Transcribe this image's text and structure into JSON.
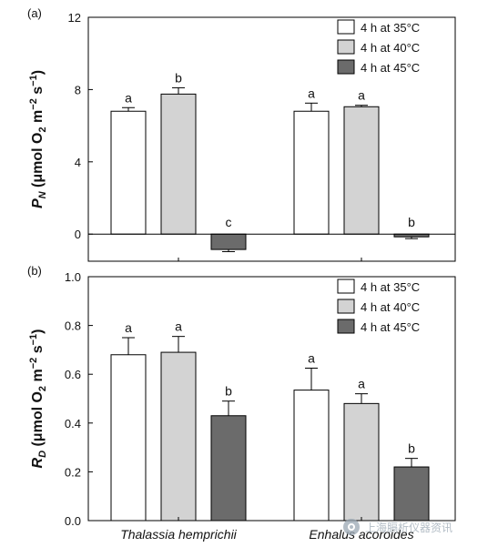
{
  "chart_data": [
    {
      "type": "bar",
      "panel_label": "(a)",
      "ylabel": {
        "main": "P",
        "sub": "N",
        "unit_pre": "(μmol O",
        "unit_o_sub": "2",
        "unit_mid": " m",
        "unit_exp1": "−2",
        "unit_s": " s",
        "unit_exp2": "−1",
        "unit_post": ")"
      },
      "ylim": [
        -1.5,
        12
      ],
      "yticks": [
        0,
        4,
        8,
        12
      ],
      "ytick_labels": [
        "0",
        "4",
        "8",
        "12"
      ],
      "grid": false,
      "legend_position": "top-right",
      "categories": [
        "Thalassia hemprichii",
        "Enhalus acoroides"
      ],
      "series": [
        {
          "name": "4 h at 35°C",
          "color": "#ffffff",
          "values": [
            6.8,
            6.8
          ],
          "errors": [
            0.2,
            0.45
          ],
          "letters": [
            "a",
            "a"
          ]
        },
        {
          "name": "4 h at 40°C",
          "color": "#d3d3d3",
          "values": [
            7.75,
            7.05
          ],
          "errors": [
            0.35,
            0.08
          ],
          "letters": [
            "b",
            "a"
          ]
        },
        {
          "name": "4 h at 45°C",
          "color": "#6b6b6b",
          "values": [
            -0.85,
            -0.15
          ],
          "errors": [
            0.12,
            0.1
          ],
          "letters": [
            "c",
            "b"
          ]
        }
      ]
    },
    {
      "type": "bar",
      "panel_label": "(b)",
      "ylabel": {
        "main": "R",
        "sub": "D",
        "unit_pre": "(μmol O",
        "unit_o_sub": "2",
        "unit_mid": " m",
        "unit_exp1": "−2",
        "unit_s": " s",
        "unit_exp2": "−1",
        "unit_post": ")"
      },
      "ylim": [
        0,
        1.0
      ],
      "yticks": [
        0,
        0.2,
        0.4,
        0.6,
        0.8,
        1.0
      ],
      "ytick_labels": [
        "0.0",
        "0.2",
        "0.4",
        "0.6",
        "0.8",
        "1.0"
      ],
      "grid": false,
      "legend_position": "top-right",
      "categories": [
        "Thalassia hemprichii",
        "Enhalus acoroides"
      ],
      "series": [
        {
          "name": "4 h at 35°C",
          "color": "#ffffff",
          "values": [
            0.68,
            0.535
          ],
          "errors": [
            0.07,
            0.09
          ],
          "letters": [
            "a",
            "a"
          ]
        },
        {
          "name": "4 h at 40°C",
          "color": "#d3d3d3",
          "values": [
            0.69,
            0.48
          ],
          "errors": [
            0.065,
            0.04
          ],
          "letters": [
            "a",
            "a"
          ]
        },
        {
          "name": "4 h at 45°C",
          "color": "#6b6b6b",
          "values": [
            0.43,
            0.22
          ],
          "errors": [
            0.06,
            0.035
          ],
          "letters": [
            "b",
            "b"
          ]
        }
      ]
    }
  ],
  "watermark": {
    "icon": "wechat-logo-icon",
    "text": "上海膈析仪器资讯"
  }
}
